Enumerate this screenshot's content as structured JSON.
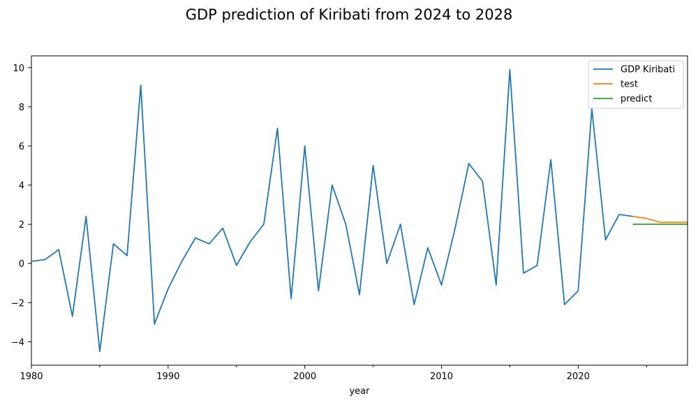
{
  "chart_data": {
    "type": "line",
    "title": "GDP prediction of Kiribati from 2024 to 2028",
    "xlabel": "year",
    "ylabel": "",
    "xlim": [
      1980,
      2028
    ],
    "ylim": [
      -5.2,
      10.6
    ],
    "xticks": [
      1980,
      1990,
      2000,
      2010,
      2020
    ],
    "xticks_minor": [
      1985,
      1995,
      2005,
      2015,
      2025
    ],
    "yticks": [
      -4,
      -2,
      0,
      2,
      4,
      6,
      8,
      10
    ],
    "grid": false,
    "legend_position": "upper-right",
    "series": [
      {
        "name": "GDP Kiribati",
        "color": "#1f77b4",
        "x": [
          1980,
          1981,
          1982,
          1983,
          1984,
          1985,
          1986,
          1987,
          1988,
          1989,
          1990,
          1991,
          1992,
          1993,
          1994,
          1995,
          1996,
          1997,
          1998,
          1999,
          2000,
          2001,
          2002,
          2003,
          2004,
          2005,
          2006,
          2007,
          2008,
          2009,
          2010,
          2011,
          2012,
          2013,
          2014,
          2015,
          2016,
          2017,
          2018,
          2019,
          2020,
          2021,
          2022,
          2023,
          2024
        ],
        "y": [
          0.1,
          0.2,
          0.7,
          -2.7,
          2.4,
          -4.5,
          1.0,
          0.4,
          9.1,
          -3.1,
          -1.3,
          0.1,
          1.3,
          1.0,
          1.8,
          -0.1,
          1.1,
          2.0,
          6.9,
          -1.8,
          6.0,
          -1.4,
          4.0,
          2.0,
          -1.6,
          5.0,
          0.0,
          2.0,
          -2.1,
          0.8,
          -1.1,
          1.8,
          5.1,
          4.2,
          -1.1,
          9.9,
          -0.5,
          -0.1,
          5.3,
          -2.1,
          -1.4,
          7.9,
          1.2,
          2.5,
          2.4
        ]
      },
      {
        "name": "test",
        "color": "#ff7f0e",
        "x": [
          2024,
          2025,
          2026,
          2027,
          2028
        ],
        "y": [
          2.4,
          2.3,
          2.1,
          2.1,
          2.1
        ]
      },
      {
        "name": "predict",
        "color": "#2ca02c",
        "x": [
          2024,
          2025,
          2026,
          2027,
          2028
        ],
        "y": [
          2.0,
          2.0,
          2.0,
          2.0,
          2.0
        ]
      }
    ]
  }
}
